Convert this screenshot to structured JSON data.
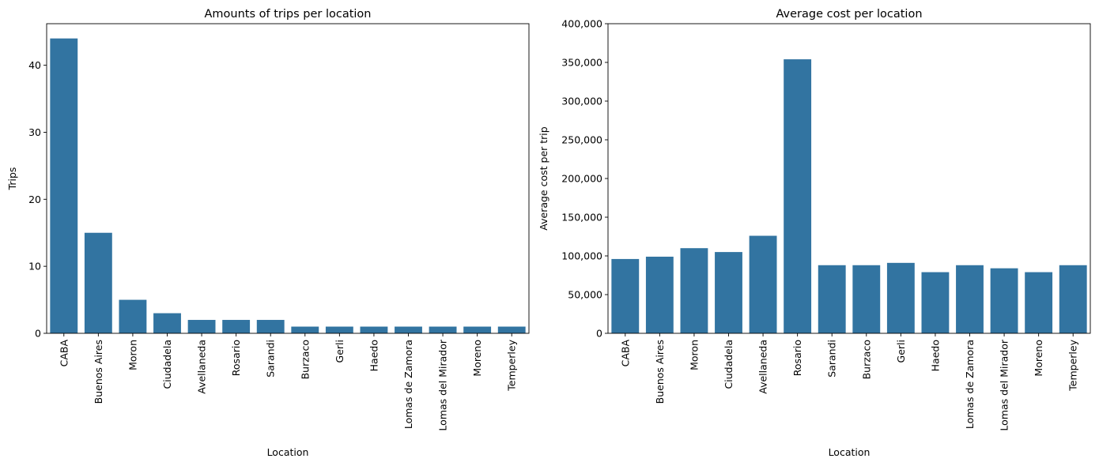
{
  "chart_data": [
    {
      "type": "bar",
      "title": "Amounts of trips per location",
      "xlabel": "Location",
      "ylabel": "Trips",
      "categories": [
        "CABA",
        "Buenos Aires",
        "Moron",
        "Ciudadela",
        "Avellaneda",
        "Rosario",
        "Sarandi",
        "Burzaco",
        "Gerli",
        "Haedo",
        "Lomas de Zamora",
        "Lomas del Mirador",
        "Moreno",
        "Temperley"
      ],
      "values": [
        44,
        15,
        5,
        3,
        2,
        2,
        2,
        1,
        1,
        1,
        1,
        1,
        1,
        1
      ],
      "ylim": [
        0,
        46.2
      ],
      "yticks": [
        0,
        10,
        20,
        30,
        40
      ],
      "ytick_labels": [
        "0",
        "10",
        "20",
        "30",
        "40"
      ],
      "color": "#3274a1",
      "grid": false
    },
    {
      "type": "bar",
      "title": "Average cost per location",
      "xlabel": "Location",
      "ylabel": "Average cost per trip",
      "categories": [
        "CABA",
        "Buenos Aires",
        "Moron",
        "Ciudadela",
        "Avellaneda",
        "Rosario",
        "Sarandi",
        "Burzaco",
        "Gerli",
        "Haedo",
        "Lomas de Zamora",
        "Lomas del Mirador",
        "Moreno",
        "Temperley"
      ],
      "values": [
        96000,
        99000,
        110000,
        105000,
        126000,
        354000,
        88000,
        88000,
        91000,
        79000,
        88000,
        84000,
        79000,
        88000
      ],
      "ylim": [
        0,
        400000
      ],
      "yticks": [
        0,
        50000,
        100000,
        150000,
        200000,
        250000,
        300000,
        350000,
        400000
      ],
      "ytick_labels": [
        "0",
        "50,000",
        "100,000",
        "150,000",
        "200,000",
        "250,000",
        "300,000",
        "350,000",
        "400,000"
      ],
      "color": "#3274a1",
      "grid": false
    }
  ]
}
